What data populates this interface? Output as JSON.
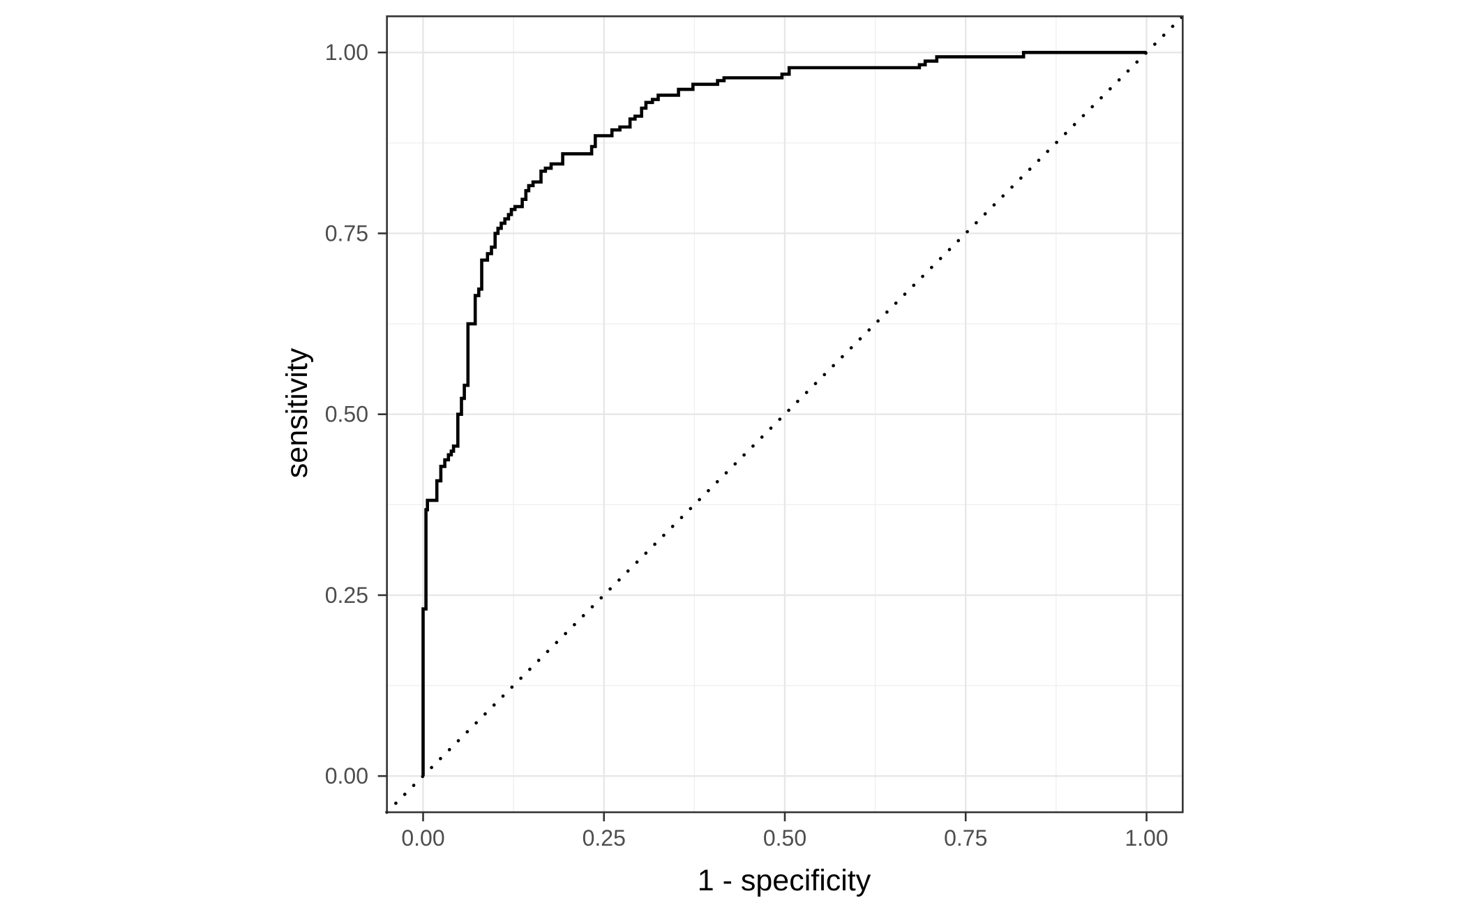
{
  "chart_data": {
    "type": "line",
    "title": "",
    "xlabel": "1 - specificity",
    "ylabel": "sensitivity",
    "xlim": [
      -0.05,
      1.05
    ],
    "ylim": [
      -0.05,
      1.05
    ],
    "grid": "on",
    "legend": "none",
    "x_ticks": [
      {
        "v": 0.0,
        "label": "0.00"
      },
      {
        "v": 0.25,
        "label": "0.25"
      },
      {
        "v": 0.5,
        "label": "0.50"
      },
      {
        "v": 0.75,
        "label": "0.75"
      },
      {
        "v": 1.0,
        "label": "1.00"
      }
    ],
    "y_ticks": [
      {
        "v": 0.0,
        "label": "0.00"
      },
      {
        "v": 0.25,
        "label": "0.25"
      },
      {
        "v": 0.5,
        "label": "0.50"
      },
      {
        "v": 0.75,
        "label": "0.75"
      },
      {
        "v": 1.0,
        "label": "1.00"
      }
    ],
    "x_minor_gridlines": [
      0.125,
      0.375,
      0.625,
      0.875
    ],
    "y_minor_gridlines": [
      0.125,
      0.375,
      0.625,
      0.875
    ],
    "styles": {
      "background": "#FFFFFF",
      "panel_background": "#FFFFFF",
      "panel_border_color": "#333333",
      "grid_major_color": "#E7E7E7",
      "grid_minor_color": "#EFEFEF",
      "tick_color": "#333333",
      "tick_label_color": "#4D4D4D",
      "axis_title_color": "#000000",
      "curve_color": "#000000",
      "diagonal_color": "#000000"
    },
    "series": [
      {
        "name": "roc_curve",
        "type": "step",
        "line_style": "solid",
        "stroke_width": 4.6,
        "points": [
          [
            0.0,
            0.0
          ],
          [
            0.0,
            0.231
          ],
          [
            0.004,
            0.231
          ],
          [
            0.004,
            0.368
          ],
          [
            0.006,
            0.368
          ],
          [
            0.006,
            0.381
          ],
          [
            0.019,
            0.381
          ],
          [
            0.019,
            0.408
          ],
          [
            0.0245,
            0.408
          ],
          [
            0.0245,
            0.428
          ],
          [
            0.03,
            0.428
          ],
          [
            0.03,
            0.437
          ],
          [
            0.035,
            0.437
          ],
          [
            0.035,
            0.444
          ],
          [
            0.039,
            0.444
          ],
          [
            0.039,
            0.449
          ],
          [
            0.042,
            0.449
          ],
          [
            0.042,
            0.456
          ],
          [
            0.048,
            0.456
          ],
          [
            0.048,
            0.5
          ],
          [
            0.053,
            0.5
          ],
          [
            0.053,
            0.522
          ],
          [
            0.057,
            0.522
          ],
          [
            0.057,
            0.54
          ],
          [
            0.062,
            0.54
          ],
          [
            0.062,
            0.625
          ],
          [
            0.072,
            0.625
          ],
          [
            0.072,
            0.664
          ],
          [
            0.077,
            0.664
          ],
          [
            0.077,
            0.673
          ],
          [
            0.081,
            0.673
          ],
          [
            0.081,
            0.713
          ],
          [
            0.089,
            0.713
          ],
          [
            0.089,
            0.722
          ],
          [
            0.0945,
            0.722
          ],
          [
            0.0945,
            0.731
          ],
          [
            0.0995,
            0.731
          ],
          [
            0.0995,
            0.75
          ],
          [
            0.1035,
            0.75
          ],
          [
            0.1035,
            0.757
          ],
          [
            0.108,
            0.757
          ],
          [
            0.108,
            0.764
          ],
          [
            0.113,
            0.764
          ],
          [
            0.113,
            0.77
          ],
          [
            0.118,
            0.77
          ],
          [
            0.118,
            0.776
          ],
          [
            0.122,
            0.776
          ],
          [
            0.122,
            0.783
          ],
          [
            0.127,
            0.783
          ],
          [
            0.127,
            0.787
          ],
          [
            0.137,
            0.787
          ],
          [
            0.137,
            0.797
          ],
          [
            0.142,
            0.797
          ],
          [
            0.142,
            0.809
          ],
          [
            0.146,
            0.809
          ],
          [
            0.146,
            0.816
          ],
          [
            0.152,
            0.816
          ],
          [
            0.152,
            0.821
          ],
          [
            0.163,
            0.821
          ],
          [
            0.163,
            0.836
          ],
          [
            0.169,
            0.836
          ],
          [
            0.169,
            0.84
          ],
          [
            0.177,
            0.84
          ],
          [
            0.177,
            0.846
          ],
          [
            0.193,
            0.846
          ],
          [
            0.193,
            0.86
          ],
          [
            0.233,
            0.86
          ],
          [
            0.233,
            0.87
          ],
          [
            0.238,
            0.87
          ],
          [
            0.238,
            0.885
          ],
          [
            0.261,
            0.885
          ],
          [
            0.261,
            0.893
          ],
          [
            0.272,
            0.893
          ],
          [
            0.272,
            0.897
          ],
          [
            0.286,
            0.897
          ],
          [
            0.286,
            0.908
          ],
          [
            0.293,
            0.908
          ],
          [
            0.293,
            0.912
          ],
          [
            0.302,
            0.912
          ],
          [
            0.302,
            0.923
          ],
          [
            0.308,
            0.923
          ],
          [
            0.308,
            0.931
          ],
          [
            0.317,
            0.931
          ],
          [
            0.317,
            0.935
          ],
          [
            0.325,
            0.935
          ],
          [
            0.325,
            0.941
          ],
          [
            0.353,
            0.941
          ],
          [
            0.353,
            0.949
          ],
          [
            0.373,
            0.949
          ],
          [
            0.373,
            0.956
          ],
          [
            0.407,
            0.956
          ],
          [
            0.407,
            0.961
          ],
          [
            0.416,
            0.961
          ],
          [
            0.416,
            0.965
          ],
          [
            0.496,
            0.965
          ],
          [
            0.496,
            0.97
          ],
          [
            0.506,
            0.97
          ],
          [
            0.506,
            0.979
          ],
          [
            0.686,
            0.979
          ],
          [
            0.686,
            0.983
          ],
          [
            0.694,
            0.983
          ],
          [
            0.694,
            0.988
          ],
          [
            0.71,
            0.988
          ],
          [
            0.71,
            0.994
          ],
          [
            0.83,
            0.994
          ],
          [
            0.83,
            1.0
          ],
          [
            1.0,
            1.0
          ]
        ]
      },
      {
        "name": "chance_diagonal",
        "type": "line",
        "line_style": "dotted",
        "stroke_width": 4.7,
        "points": [
          [
            -0.05,
            -0.05
          ],
          [
            1.05,
            1.05
          ]
        ]
      }
    ]
  }
}
